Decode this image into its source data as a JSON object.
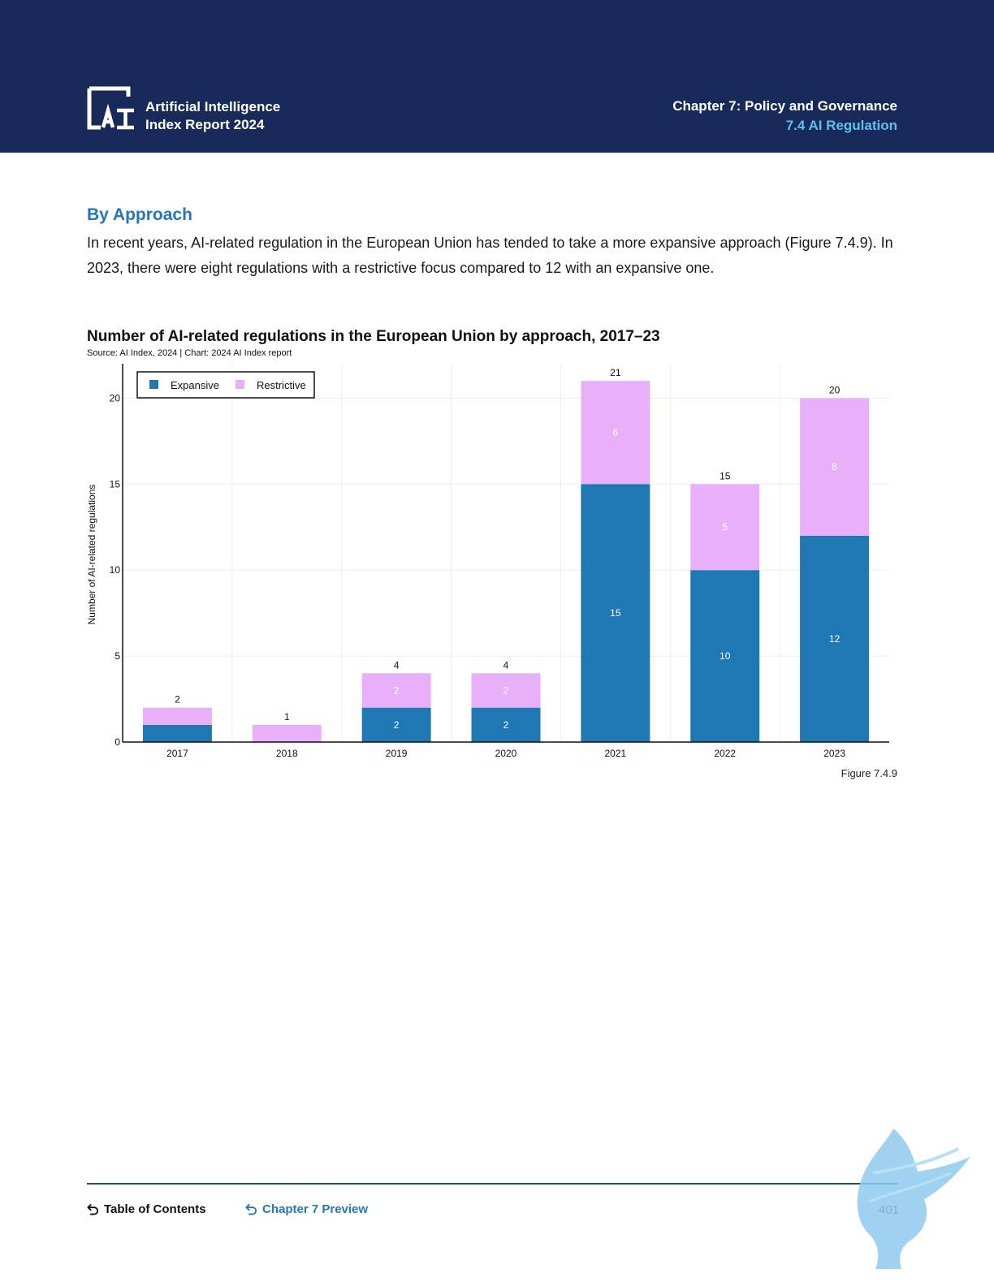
{
  "header": {
    "report_title_line1": "Artificial Intelligence",
    "report_title_line2": "Index Report 2024",
    "chapter_line": "Chapter 7: Policy and Governance",
    "section_line": "7.4 AI Regulation"
  },
  "section": {
    "heading": "By Approach",
    "body": "In recent years, AI-related regulation in the European Union has tended to take a more expansive approach (Figure 7.4.9). In 2023, there were eight regulations with a restrictive focus compared to 12 with an expansive one."
  },
  "chart_data": {
    "type": "bar",
    "stacked": true,
    "title": "Number of AI-related regulations in the European Union by approach, 2017–23",
    "subtitle": "Source: AI Index, 2024 | Chart: 2024 AI Index report",
    "xlabel": "",
    "ylabel": "Number of AI-related regulations",
    "categories": [
      "2017",
      "2018",
      "2019",
      "2020",
      "2021",
      "2022",
      "2023"
    ],
    "series": [
      {
        "name": "Expansive",
        "color": "#1f77b4",
        "values": [
          1,
          0,
          2,
          2,
          15,
          10,
          12
        ],
        "labels": [
          "",
          "",
          "2",
          "2",
          "15",
          "10",
          "12"
        ]
      },
      {
        "name": "Restrictive",
        "color": "#e8b0f8",
        "values": [
          1,
          1,
          2,
          2,
          6,
          5,
          8
        ],
        "labels": [
          "",
          "",
          "2",
          "2",
          "6",
          "5",
          "8"
        ]
      }
    ],
    "totals": [
      2,
      1,
      4,
      4,
      21,
      15,
      20
    ],
    "ylim": [
      0,
      22
    ],
    "yticks": [
      0,
      5,
      10,
      15,
      20
    ],
    "grid": true,
    "legend": "top-left"
  },
  "figure_label": "Figure 7.4.9",
  "footer": {
    "toc": "Table of Contents",
    "chapter_preview": "Chapter 7 Preview",
    "page_number": "401"
  },
  "icons": {
    "back": "return-arrow-icon",
    "logo": "ai-index-logo",
    "watermark": "griffin-watermark"
  }
}
